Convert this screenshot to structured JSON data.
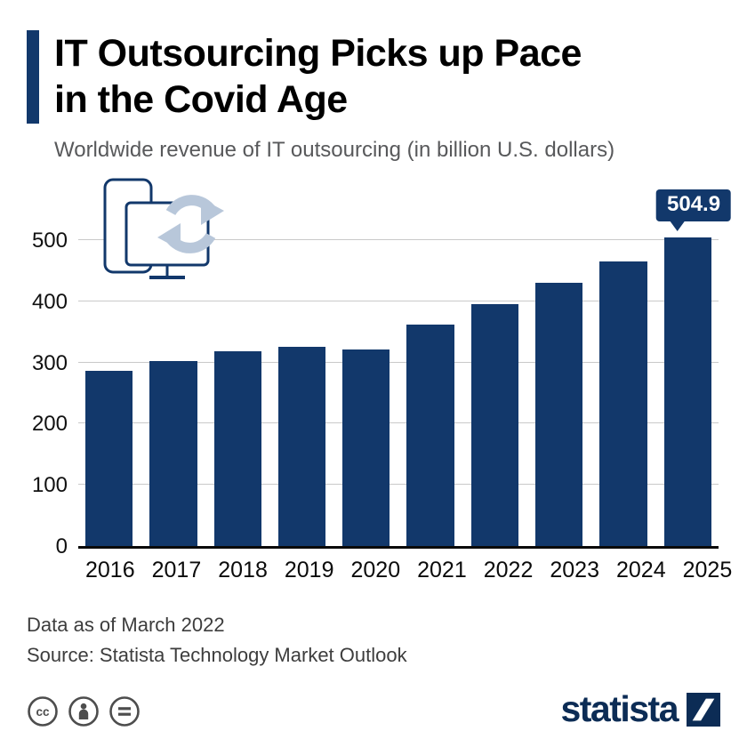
{
  "header": {
    "title_line1": "IT Outsourcing Picks up Pace",
    "title_line2": "in the Covid Age",
    "subtitle": "Worldwide revenue of IT outsourcing (in billion U.S. dollars)"
  },
  "chart_data": {
    "type": "bar",
    "title": "IT Outsourcing Picks up Pace in the Covid Age",
    "subtitle": "Worldwide revenue of IT outsourcing (in billion U.S. dollars)",
    "categories": [
      "2016",
      "2017",
      "2018",
      "2019",
      "2020",
      "2021",
      "2022",
      "2023",
      "2024",
      "2025"
    ],
    "values": [
      287,
      302,
      318,
      325,
      321,
      362,
      396,
      430,
      466,
      504.9
    ],
    "xlabel": "",
    "ylabel": "",
    "ylim": [
      0,
      560
    ],
    "yticks": [
      0,
      100,
      200,
      300,
      400,
      500
    ],
    "grid": true,
    "legend_position": "none",
    "bar_color": "#12386b",
    "data_label": {
      "category": "2025",
      "text": "504.9"
    }
  },
  "footer": {
    "note": "Data as of March 2022",
    "source": "Source: Statista Technology Market Outlook"
  },
  "branding": {
    "logo_text": "statista"
  },
  "icons": {
    "decorative": "device-sync-icon",
    "license": [
      "creative-commons-icon",
      "attribution-icon",
      "equal-no-derivatives-icon"
    ],
    "logo_mark": "statista-slash-icon"
  },
  "colors": {
    "navy": "#12386b",
    "subtitle": "#58595b",
    "gridline": "#c9c9c9",
    "arrow": "#b8c7da",
    "logo": "#0c2c55"
  }
}
